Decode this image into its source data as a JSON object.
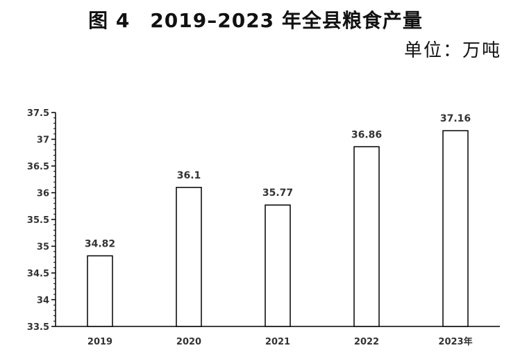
{
  "title": "图 4　2019–2023 年全县粮食产量",
  "unit_label": "单位：万吨",
  "chart_data": {
    "type": "bar",
    "categories": [
      "2019",
      "2020",
      "2021",
      "2022",
      "2023年"
    ],
    "values": [
      34.82,
      36.1,
      35.77,
      36.86,
      37.16
    ],
    "data_labels": [
      "34.82",
      "36.1",
      "35.77",
      "36.86",
      "37.16"
    ],
    "yticks": [
      "33.5",
      "34",
      "34.5",
      "35",
      "35.5",
      "36",
      "36.5",
      "37",
      "37.5"
    ],
    "ylim": [
      33.5,
      37.5
    ],
    "grid": false,
    "legend": "none",
    "bar_fill": "#ffffff",
    "bar_stroke": "#000000"
  }
}
